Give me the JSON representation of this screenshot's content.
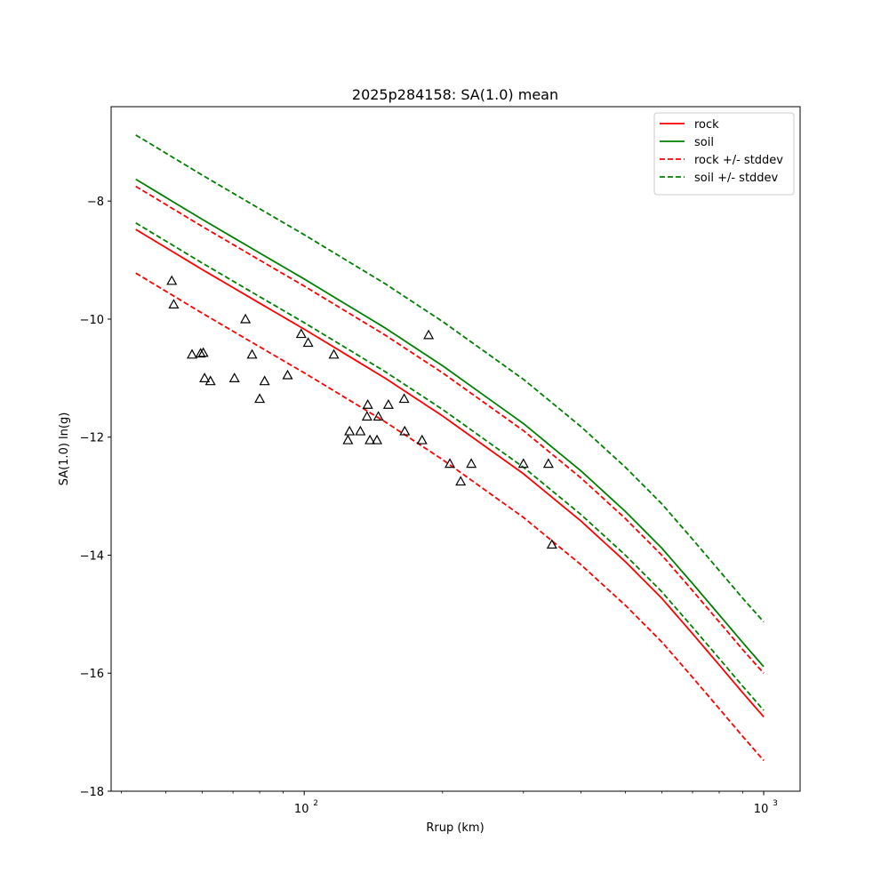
{
  "chart_data": {
    "type": "line",
    "title": "2025p284158: SA(1.0) mean",
    "xlabel": "Rrup (km)",
    "ylabel": "SA(1.0) ln(g)",
    "xscale": "log",
    "xlim": [
      38,
      1200
    ],
    "ylim": [
      -18,
      -6.4
    ],
    "yticks": [
      -18,
      -16,
      -14,
      -12,
      -10,
      -8
    ],
    "xticks_major": [
      100,
      1000
    ],
    "xticks_major_labels": [
      "10",
      "10"
    ],
    "xticks_major_exponents": [
      "2",
      "3"
    ],
    "xticks_minor": [
      40,
      50,
      60,
      70,
      80,
      90,
      200,
      300,
      400,
      500,
      600,
      700,
      800,
      900
    ],
    "grid": false,
    "legend_position": "top-right",
    "series": [
      {
        "name": "rock",
        "color": "#ff0000",
        "style": "solid",
        "x": [
          43,
          60,
          80,
          100,
          150,
          200,
          300,
          400,
          500,
          600,
          700,
          800,
          900,
          1000
        ],
        "y": [
          -8.48,
          -9.16,
          -9.73,
          -10.17,
          -11.0,
          -11.64,
          -12.62,
          -13.42,
          -14.11,
          -14.73,
          -15.33,
          -15.86,
          -16.33,
          -16.74
        ]
      },
      {
        "name": "soil",
        "color": "#008000",
        "style": "solid",
        "x": [
          43,
          60,
          80,
          100,
          150,
          200,
          300,
          400,
          500,
          600,
          700,
          800,
          900,
          1000
        ],
        "y": [
          -7.63,
          -8.31,
          -8.88,
          -9.32,
          -10.15,
          -10.79,
          -11.77,
          -12.57,
          -13.26,
          -13.88,
          -14.48,
          -15.01,
          -15.48,
          -15.89
        ]
      },
      {
        "name": "rock +/- stddev",
        "color": "#ff0000",
        "style": "dashed",
        "x": [
          43,
          60,
          80,
          100,
          150,
          200,
          300,
          400,
          500,
          600,
          700,
          800,
          900,
          1000
        ],
        "y": [
          -7.75,
          -8.43,
          -9.0,
          -9.44,
          -10.27,
          -10.91,
          -11.89,
          -12.69,
          -13.38,
          -14.0,
          -14.6,
          -15.13,
          -15.6,
          -16.0
        ]
      },
      {
        "name": "",
        "color": "#ff0000",
        "style": "dashed",
        "x": [
          43,
          60,
          80,
          100,
          150,
          200,
          300,
          400,
          500,
          600,
          700,
          800,
          900,
          1000
        ],
        "y": [
          -9.22,
          -9.9,
          -10.47,
          -10.91,
          -11.74,
          -12.38,
          -13.36,
          -14.16,
          -14.85,
          -15.47,
          -16.07,
          -16.6,
          -17.07,
          -17.48
        ]
      },
      {
        "name": "soil +/- stddev",
        "color": "#008000",
        "style": "dashed",
        "x": [
          43,
          60,
          80,
          100,
          150,
          200,
          300,
          400,
          500,
          600,
          700,
          800,
          900,
          1000
        ],
        "y": [
          -6.88,
          -7.56,
          -8.13,
          -8.57,
          -9.4,
          -10.04,
          -11.02,
          -11.82,
          -12.51,
          -13.13,
          -13.73,
          -14.26,
          -14.73,
          -15.13
        ]
      },
      {
        "name": "",
        "color": "#008000",
        "style": "dashed",
        "x": [
          43,
          60,
          80,
          100,
          150,
          200,
          300,
          400,
          500,
          600,
          700,
          800,
          900,
          1000
        ],
        "y": [
          -8.37,
          -9.05,
          -9.62,
          -10.06,
          -10.89,
          -11.53,
          -12.51,
          -13.31,
          -14.0,
          -14.62,
          -15.22,
          -15.75,
          -16.22,
          -16.63
        ]
      }
    ],
    "observations": {
      "marker": "triangle",
      "color": "#000000",
      "points": [
        [
          51.5,
          -9.35
        ],
        [
          52,
          -9.75
        ],
        [
          57,
          -10.6
        ],
        [
          59.5,
          -10.58
        ],
        [
          60.3,
          -10.57
        ],
        [
          60.7,
          -11.0
        ],
        [
          62.5,
          -11.05
        ],
        [
          70.5,
          -11.0
        ],
        [
          74.5,
          -10.0
        ],
        [
          77,
          -10.6
        ],
        [
          80,
          -11.35
        ],
        [
          82,
          -11.05
        ],
        [
          92,
          -10.95
        ],
        [
          98.5,
          -10.25
        ],
        [
          102,
          -10.4
        ],
        [
          116,
          -10.6
        ],
        [
          124.5,
          -12.05
        ],
        [
          125.5,
          -11.9
        ],
        [
          132.5,
          -11.9
        ],
        [
          137,
          -11.65
        ],
        [
          137.5,
          -11.45
        ],
        [
          139,
          -12.05
        ],
        [
          144,
          -12.05
        ],
        [
          145,
          -11.65
        ],
        [
          152.5,
          -11.45
        ],
        [
          165,
          -11.35
        ],
        [
          165.5,
          -11.9
        ],
        [
          180.5,
          -12.05
        ],
        [
          186.5,
          -10.27
        ],
        [
          207.5,
          -12.45
        ],
        [
          219,
          -12.75
        ],
        [
          231,
          -12.45
        ],
        [
          300,
          -12.45
        ],
        [
          340,
          -12.45
        ],
        [
          346,
          -13.82
        ]
      ]
    }
  }
}
